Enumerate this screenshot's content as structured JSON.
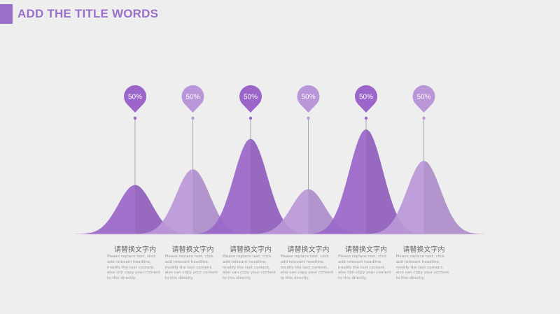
{
  "header": {
    "title": "ADD THE TITLE WORDS"
  },
  "colors": {
    "accent": "#9a6fc7",
    "dark_purple": "#9a66c8",
    "light_purple": "#bb98d8",
    "background": "#efeeef"
  },
  "items": [
    {
      "value": 50,
      "value_label": "50%",
      "level": 0.47,
      "tone": "dark",
      "title": "请替换文字内",
      "text": "Please replace text, click add relevant headline, modify the text content, also can copy your content to this directly."
    },
    {
      "value": 50,
      "value_label": "50%",
      "level": 0.62,
      "tone": "light",
      "title": "请替换文字内",
      "text": "Please replace text, click add relevant headline, modify the text content, also can copy your content to this directly."
    },
    {
      "value": 50,
      "value_label": "50%",
      "level": 0.91,
      "tone": "dark",
      "title": "请替换文字内",
      "text": "Please replace text, click add relevant headline, modify the text content, also can copy your content to this directly."
    },
    {
      "value": 50,
      "value_label": "50%",
      "level": 0.43,
      "tone": "light",
      "title": "请替换文字内",
      "text": "Please replace text, click add relevant headline, modify the text content, also can copy your content to this directly."
    },
    {
      "value": 50,
      "value_label": "50%",
      "level": 1.0,
      "tone": "dark",
      "title": "请替换文字内",
      "text": "Please replace text, click add relevant headline, modify the text content, also can copy your content to this directly."
    },
    {
      "value": 50,
      "value_label": "50%",
      "level": 0.7,
      "tone": "light",
      "title": "请替换文字内",
      "text": "Please replace text, click add relevant headline, modify the text content, also can copy your content to this directly."
    }
  ]
}
